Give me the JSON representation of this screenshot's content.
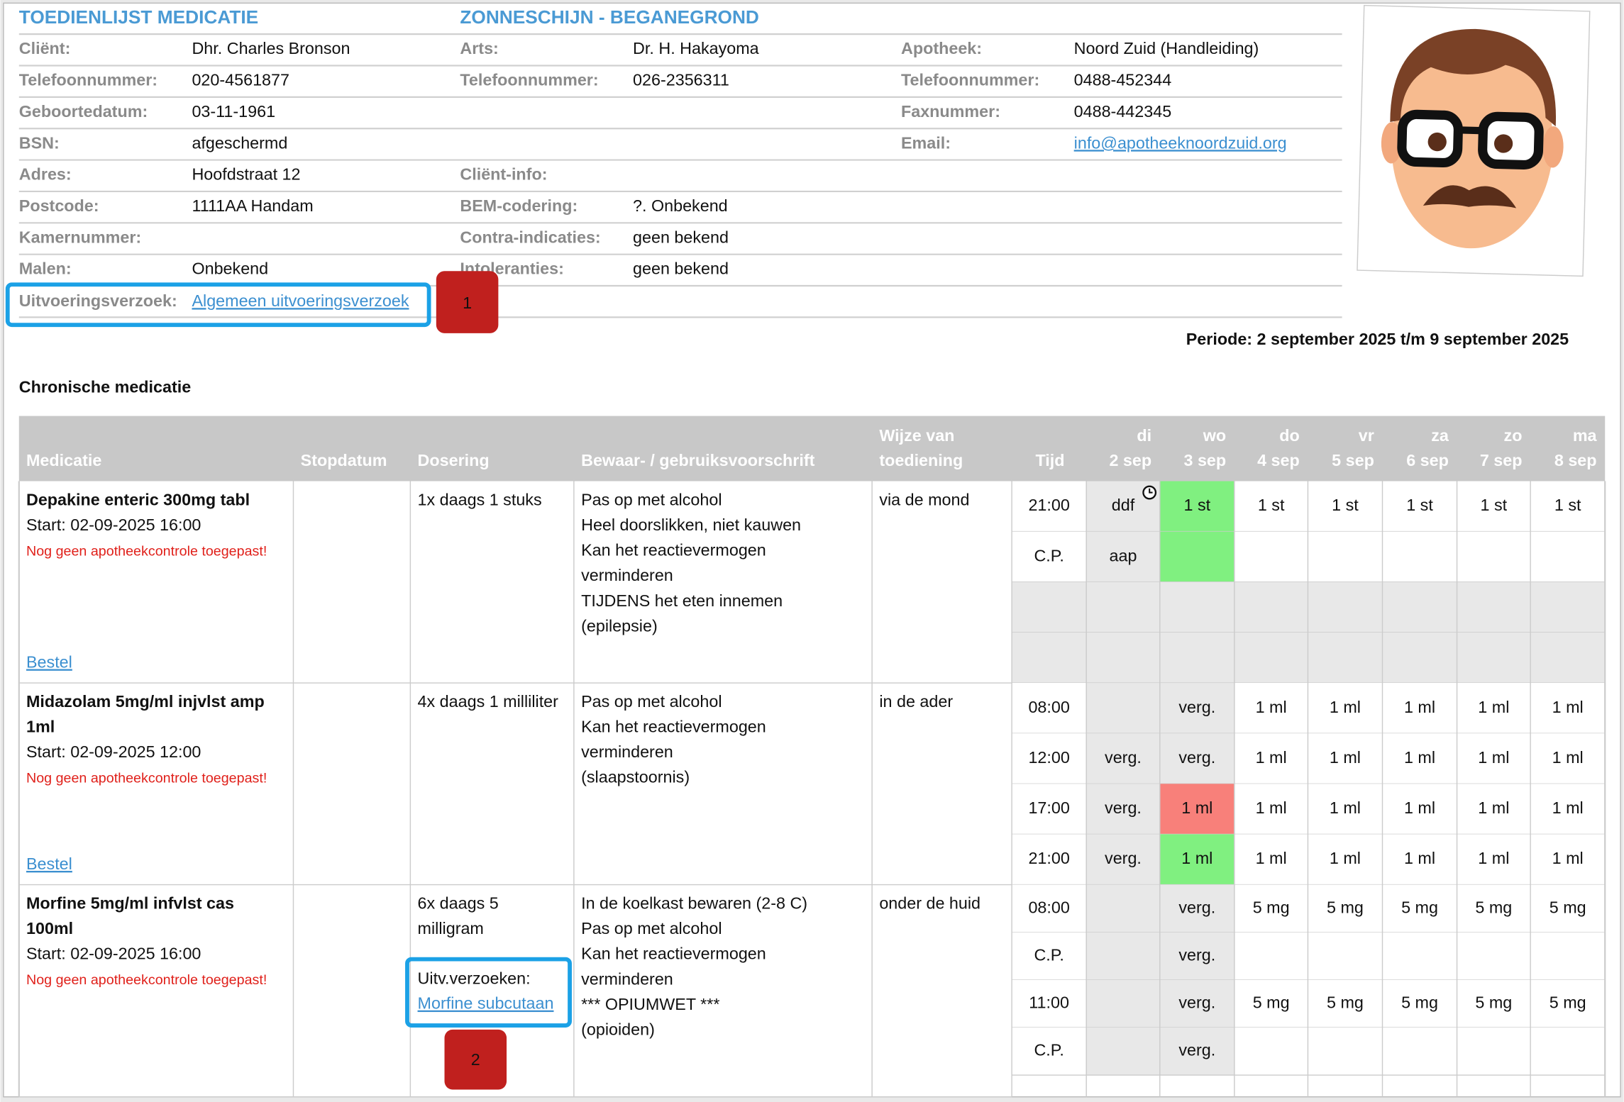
{
  "header": {
    "title": "TOEDIENLIJST MEDICATIE",
    "location": "ZONNESCHIJN - BEGANEGROND",
    "columns": [
      [
        {
          "label": "Cliënt:",
          "value": "Dhr. Charles Bronson"
        },
        {
          "label": "Telefoonnummer:",
          "value": "020-4561877"
        },
        {
          "label": "Geboortedatum:",
          "value": "03-11-1961"
        },
        {
          "label": "BSN:",
          "value": "afgeschermd"
        },
        {
          "label": "Adres:",
          "value": "Hoofdstraat 12"
        },
        {
          "label": "Postcode:",
          "value": "1111AA Handam"
        },
        {
          "label": "Kamernummer:"
        },
        {
          "label": "Malen:",
          "value": "Onbekend"
        }
      ],
      [
        {
          "label": "Arts:",
          "value": "Dr. H. Hakayoma"
        },
        {
          "label": "Telefoonnummer:",
          "value": "026-2356311"
        },
        null,
        null,
        {
          "label": "Cliënt-info:"
        },
        {
          "label": "BEM-codering:",
          "value": "?. Onbekend"
        },
        {
          "label": "Contra-indicaties:",
          "value": "geen bekend"
        },
        {
          "label": "Intoleranties:",
          "value": "geen bekend"
        }
      ],
      [
        {
          "label": "Apotheek:",
          "value": "Noord Zuid (Handleiding)"
        },
        {
          "label": "Telefoonnummer:",
          "value": "0488-452344"
        },
        {
          "label": "Faxnummer:",
          "value": "0488-442345"
        },
        {
          "label": "Email:",
          "value": "info@apotheeknoordzuid.org",
          "link": true
        }
      ]
    ],
    "request_label": "Uitvoeringsverzoek:",
    "request_link": "Algemeen uitvoeringsverzoek",
    "period": "Periode: 2 september 2025 t/m 9 september 2025"
  },
  "callouts": [
    "1",
    "2"
  ],
  "section": "Chronische medicatie",
  "table": {
    "headers": [
      "Medicatie",
      "Stopdatum",
      "Dosering",
      "Bewaar- / gebruiksvoorschrift",
      [
        "Wijze van",
        "toediening"
      ],
      "Tijd"
    ],
    "days": [
      [
        "di",
        "2 sep"
      ],
      [
        "wo",
        "3 sep"
      ],
      [
        "do",
        "4 sep"
      ],
      [
        "vr",
        "5 sep"
      ],
      [
        "za",
        "6 sep"
      ],
      [
        "zo",
        "7 sep"
      ],
      [
        "ma",
        "8 sep"
      ]
    ],
    "colors": {
      "past": "#e8e8e8",
      "given": "#80f080",
      "missed": "#f8807a",
      "future": "#ffffff"
    },
    "rows": [
      {
        "name": [
          "Depakine enteric 300mg tabl"
        ],
        "start": "Start: 02-09-2025 16:00",
        "warning": "Nog geen apotheekcontrole toegepast!",
        "order": "Bestel",
        "dose": [
          "1x daags 1 stuks"
        ],
        "instructions": [
          "Pas op met alcohol",
          "Heel doorslikken, niet kauwen",
          "Kan het reactievermogen",
          "verminderen",
          "TIJDENS het eten innemen",
          "(epilepsie)"
        ],
        "route": "via de mond",
        "schedule": [
          {
            "time": "21:00",
            "cells": [
              "ddf",
              "1 st",
              "1 st",
              "1 st",
              "1 st",
              "1 st",
              "1 st"
            ],
            "bg": [
              "past",
              "given",
              "future",
              "future",
              "future",
              "future",
              "future"
            ]
          },
          {
            "time": "C.P.",
            "cells": [
              "aap",
              null,
              null,
              null,
              null,
              null,
              null
            ],
            "bg": [
              "past",
              "given",
              "future",
              "future",
              "future",
              "future",
              "future"
            ]
          },
          {
            "time": null,
            "cells": [
              null,
              null,
              null,
              null,
              null,
              null,
              null
            ],
            "bg": [
              "past",
              "past",
              "past",
              "past",
              "past",
              "past",
              "past"
            ]
          },
          {
            "time": null,
            "cells": [
              null,
              null,
              null,
              null,
              null,
              null,
              null
            ],
            "bg": [
              "past",
              "past",
              "past",
              "past",
              "past",
              "past",
              "past"
            ]
          }
        ]
      },
      {
        "name": [
          "Midazolam 5mg/ml injvlst amp",
          "1ml"
        ],
        "start": "Start: 02-09-2025 12:00",
        "warning": "Nog geen apotheekcontrole toegepast!",
        "order": "Bestel",
        "dose": [
          "4x daags 1 milliliter"
        ],
        "instructions": [
          "Pas op met alcohol",
          "Kan het reactievermogen",
          "verminderen",
          "(slaapstoornis)"
        ],
        "route": "in de ader",
        "schedule": [
          {
            "time": "08:00",
            "cells": [
              null,
              "verg.",
              "1 ml",
              "1 ml",
              "1 ml",
              "1 ml",
              "1 ml"
            ],
            "bg": [
              "past",
              "past",
              "future",
              "future",
              "future",
              "future",
              "future"
            ]
          },
          {
            "time": "12:00",
            "cells": [
              "verg.",
              "verg.",
              "1 ml",
              "1 ml",
              "1 ml",
              "1 ml",
              "1 ml"
            ],
            "bg": [
              "past",
              "past",
              "future",
              "future",
              "future",
              "future",
              "future"
            ]
          },
          {
            "time": "17:00",
            "cells": [
              "verg.",
              "1 ml",
              "1 ml",
              "1 ml",
              "1 ml",
              "1 ml",
              "1 ml"
            ],
            "bg": [
              "past",
              "missed",
              "future",
              "future",
              "future",
              "future",
              "future"
            ]
          },
          {
            "time": "21:00",
            "cells": [
              "verg.",
              "1 ml",
              "1 ml",
              "1 ml",
              "1 ml",
              "1 ml",
              "1 ml"
            ],
            "bg": [
              "past",
              "given",
              "future",
              "future",
              "future",
              "future",
              "future"
            ]
          }
        ]
      },
      {
        "name": [
          "Morfine 5mg/ml infvlst cas",
          "100ml"
        ],
        "start": "Start: 02-09-2025 16:00",
        "warning": "Nog geen apotheekcontrole toegepast!",
        "dose": [
          "6x daags 5",
          "milligram"
        ],
        "requests_label": "Uitv.verzoeken:",
        "requests_link": "Morfine subcutaan",
        "instructions": [
          "In de koelkast bewaren (2-8 C)",
          "Pas op met alcohol",
          "Kan het reactievermogen",
          "verminderen",
          "*** OPIUMWET ***",
          "(opioiden)"
        ],
        "route": "onder de huid",
        "schedule": [
          {
            "time": "08:00",
            "cells": [
              null,
              "verg.",
              "5 mg",
              "5 mg",
              "5 mg",
              "5 mg",
              "5 mg"
            ],
            "bg": [
              "past",
              "past",
              "future",
              "future",
              "future",
              "future",
              "future"
            ]
          },
          {
            "time": "C.P.",
            "cells": [
              null,
              "verg.",
              null,
              null,
              null,
              null,
              null
            ],
            "bg": [
              "past",
              "past",
              "future",
              "future",
              "future",
              "future",
              "future"
            ]
          },
          {
            "time": "11:00",
            "cells": [
              null,
              "verg.",
              "5 mg",
              "5 mg",
              "5 mg",
              "5 mg",
              "5 mg"
            ],
            "bg": [
              "past",
              "past",
              "future",
              "future",
              "future",
              "future",
              "future"
            ]
          },
          {
            "time": "C.P.",
            "cells": [
              null,
              "verg.",
              null,
              null,
              null,
              null,
              null
            ],
            "bg": [
              "past",
              "past",
              "future",
              "future",
              "future",
              "future",
              "future"
            ]
          }
        ]
      }
    ]
  }
}
